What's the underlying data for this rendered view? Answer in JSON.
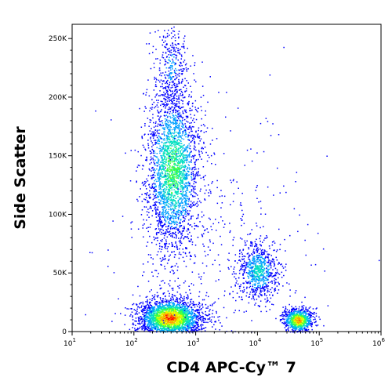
{
  "chart_data": {
    "type": "scatter",
    "subtype": "flow-cytometry-density-plot",
    "title": "",
    "xlabel": "CD4 APC-Cy™ 7",
    "ylabel": "Side Scatter",
    "x_scale": "log",
    "xlim": [
      10,
      1000000
    ],
    "ylim": [
      0,
      262144
    ],
    "x_ticks": [
      {
        "value": 10,
        "label": "10",
        "exp": "1"
      },
      {
        "value": 100,
        "label": "10",
        "exp": "2"
      },
      {
        "value": 1000,
        "label": "10",
        "exp": "3"
      },
      {
        "value": 10000,
        "label": "10",
        "exp": "4"
      },
      {
        "value": 100000,
        "label": "10",
        "exp": "5"
      },
      {
        "value": 1000000,
        "label": "10",
        "exp": "6"
      }
    ],
    "y_ticks": [
      {
        "value": 0,
        "label": "0"
      },
      {
        "value": 50000,
        "label": "50K"
      },
      {
        "value": 100000,
        "label": "100K"
      },
      {
        "value": 150000,
        "label": "150K"
      },
      {
        "value": 200000,
        "label": "200K"
      },
      {
        "value": 250000,
        "label": "250K"
      }
    ],
    "populations": [
      {
        "x_center": 420,
        "y_center": 138000,
        "x_spread_decades": 0.22,
        "y_spread": 35000,
        "events": 2600,
        "peak": 0.55
      },
      {
        "x_center": 400,
        "y_center": 225000,
        "x_spread_decades": 0.14,
        "y_spread": 22000,
        "events": 350,
        "peak": 0.2
      },
      {
        "x_center": 380,
        "y_center": 12000,
        "x_spread_decades": 0.25,
        "y_spread": 8000,
        "events": 2600,
        "peak": 1.0
      },
      {
        "x_center": 45000,
        "y_center": 10000,
        "x_spread_decades": 0.12,
        "y_spread": 5000,
        "events": 900,
        "peak": 0.95
      },
      {
        "x_center": 10000,
        "y_center": 52000,
        "x_spread_decades": 0.16,
        "y_spread": 12000,
        "events": 750,
        "peak": 0.4
      },
      {
        "x_center": 2000,
        "y_center": 60000,
        "x_spread_decades": 0.8,
        "y_spread": 60000,
        "events": 450,
        "peak": 0.05
      }
    ],
    "grid": false,
    "legend": "none",
    "colormap": [
      "#0000ff",
      "#00a0ff",
      "#00e0c0",
      "#40ff40",
      "#e0ff00",
      "#ffa000",
      "#ff0000"
    ]
  }
}
